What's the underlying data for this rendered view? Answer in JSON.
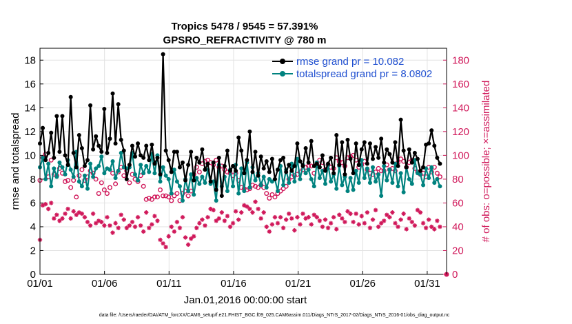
{
  "chart_data": {
    "type": "line",
    "title": "Tropics 5478 / 9545 = 57.391%",
    "subtitle": "GPSRO_REFRACTIVITY @ 780 m",
    "xlabel": "Jan.01,2016 00:00:00 start",
    "ylabel": "rmse and totalspread",
    "ylabel_right": "# of obs: o=possible; ×=assimilated",
    "xlim": [
      0,
      31.5
    ],
    "ylim": [
      0,
      19
    ],
    "ylim_right": [
      0,
      190
    ],
    "x_ticks": [
      0,
      5,
      10,
      15,
      20,
      25,
      30
    ],
    "x_tick_labels": [
      "01/01",
      "01/06",
      "01/11",
      "01/16",
      "01/21",
      "01/26",
      "01/31"
    ],
    "y_ticks": [
      0,
      2,
      4,
      6,
      8,
      10,
      12,
      14,
      16,
      18
    ],
    "y_ticks_right": [
      0,
      20,
      40,
      60,
      80,
      100,
      120,
      140,
      160,
      180
    ],
    "grid": true,
    "legend_position": "top-right",
    "footnote": "data file: /Users/raeder/DAI/ATM_forcXX/CAM6_setup/f.e21.FHIST_BGC.f09_025.CAM6assim.011/Diags_NTrS_2017-02/Diags_NTrS_2016-01/obs_diag_output.nc",
    "series": [
      {
        "name": "rmse grand pr = 10.082",
        "color": "#000000",
        "values": [
          11.0,
          12.3,
          9.6,
          10.2,
          11.9,
          9.8,
          13.3,
          10.3,
          13.3,
          10.0,
          9.2,
          14.9,
          10.2,
          9.0,
          11.7,
          10.6,
          9.1,
          9.6,
          14.2,
          10.5,
          11.6,
          10.8,
          10.3,
          13.9,
          10.2,
          11.4,
          15.2,
          11.0,
          14.3,
          11.3,
          10.4,
          8.0,
          9.2,
          10.8,
          9.9,
          11.0,
          10.0,
          9.8,
          10.8,
          9.6,
          10.9,
          9.3,
          9.8,
          8.4,
          18.5,
          10.4,
          9.6,
          8.6,
          10.3,
          10.3,
          9.0,
          9.4,
          7.9,
          9.2,
          10.3,
          7.9,
          9.8,
          9.4,
          10.5,
          8.8,
          9.3,
          7.8,
          9.4,
          7.1,
          9.8,
          6.6,
          9.1,
          10.4,
          8.7,
          9.1,
          8.7,
          11.5,
          10.4,
          8.5,
          9.6,
          12.0,
          8.6,
          10.3,
          8.3,
          9.9,
          8.9,
          9.5,
          8.6,
          9.7,
          8.0,
          8.8,
          9.6,
          9.8,
          8.6,
          9.2,
          8.7,
          9.1,
          11.0,
          9.5,
          9.1,
          10.6,
          9.4,
          11.2,
          9.1,
          9.3,
          9.0,
          10.0,
          8.7,
          9.3,
          9.8,
          8.5,
          11.7,
          9.2,
          11.1,
          8.4,
          11.3,
          9.7,
          8.5,
          11.0,
          9.2,
          10.5,
          11.1,
          9.3,
          11.0,
          9.7,
          10.7,
          9.8,
          11.4,
          9.4,
          10.5,
          10.1,
          9.4,
          11.1,
          9.1,
          13.0,
          10.4,
          9.0,
          10.5,
          9.4,
          10.2,
          9.7,
          8.7,
          9.0,
          10.9,
          11.0,
          12.1,
          10.8,
          9.8,
          9.3
        ],
        "x_start": 0.0,
        "x_step": 0.2167
      },
      {
        "name": "totalspread grand pr = 8.0802",
        "color": "#00827f",
        "values": [
          9.0,
          9.8,
          8.0,
          9.3,
          7.4,
          8.9,
          8.2,
          9.4,
          9.0,
          8.4,
          9.6,
          8.8,
          8.2,
          10.3,
          7.8,
          7.4,
          8.3,
          7.2,
          9.3,
          8.2,
          8.9,
          9.1,
          9.9,
          8.5,
          8.9,
          8.8,
          9.5,
          8.1,
          8.7,
          10.2,
          9.0,
          8.9,
          9.0,
          10.2,
          8.4,
          7.9,
          9.2,
          8.5,
          9.1,
          8.6,
          10.1,
          8.5,
          10.0,
          7.8,
          9.0,
          8.3,
          8.0,
          6.8,
          8.8,
          7.8,
          7.4,
          6.2,
          8.0,
          7.0,
          8.4,
          6.7,
          8.1,
          7.6,
          8.2,
          7.7,
          8.8,
          7.6,
          7.8,
          6.2,
          9.2,
          7.4,
          8.2,
          7.0,
          8.8,
          7.4,
          9.2,
          6.8,
          8.9,
          7.0,
          9.4,
          7.3,
          9.0,
          7.9,
          8.5,
          7.5,
          8.2,
          7.3,
          8.0,
          7.8,
          8.0,
          7.0,
          9.1,
          7.5,
          8.8,
          7.7,
          9.3,
          7.8,
          9.7,
          8.0,
          9.2,
          8.5,
          8.8,
          8.0,
          7.4,
          9.4,
          8.1,
          8.7,
          7.6,
          9.2,
          7.8,
          8.4,
          7.2,
          9.1,
          7.5,
          8.2,
          7.0,
          8.1,
          7.1,
          8.7,
          7.7,
          9.6,
          8.1,
          8.9,
          7.7,
          9.0,
          7.8,
          8.4,
          6.6,
          9.1,
          7.9,
          8.8,
          7.7,
          9.3,
          7.4,
          8.5,
          6.9,
          9.0,
          8.0,
          7.6,
          9.6,
          8.5,
          8.4,
          7.5,
          8.9,
          8.1,
          9.0,
          7.7,
          8.0,
          7.4
        ],
        "x_start": 0.0,
        "x_step": 0.2167
      },
      {
        "name": "possible obs",
        "axis": "right",
        "marker": "o",
        "color": "#d0185a",
        "values": [
          79,
          98,
          101,
          82,
          96,
          84,
          83,
          89,
          85,
          78,
          79,
          73,
          79,
          65,
          83,
          88,
          79,
          82,
          87,
          85,
          80,
          68,
          77,
          71,
          68,
          73,
          85,
          76,
          86,
          90,
          83,
          87,
          77,
          84,
          80,
          78,
          83,
          74,
          63,
          64,
          63,
          65,
          65,
          71,
          66,
          66,
          65,
          62,
          66,
          68,
          62,
          68,
          70,
          66,
          70,
          84,
          90,
          86,
          93,
          95,
          96,
          94,
          92,
          96,
          90,
          91,
          88,
          86,
          85,
          83,
          85,
          79,
          73,
          72,
          71,
          72,
          75,
          74,
          73,
          75,
          73,
          68,
          64,
          67,
          65,
          68,
          70,
          72,
          74,
          80,
          82,
          83,
          84,
          86,
          88,
          90,
          91,
          91,
          85,
          92,
          96,
          94,
          88,
          92,
          90,
          89,
          98,
          95,
          94,
          91,
          98,
          99,
          100,
          96,
          90,
          92,
          95,
          88,
          85,
          84,
          86,
          89,
          87,
          87,
          92,
          88,
          89,
          87,
          94,
          97,
          95,
          90,
          94,
          96,
          89,
          86,
          84,
          85,
          82,
          90,
          86,
          90,
          85,
          82
        ],
        "x_start": 0.0,
        "x_step": 0.2167
      },
      {
        "name": "assimilated obs",
        "axis": "right",
        "marker": "*",
        "color": "#d0185a",
        "values": [
          29,
          58,
          59,
          55,
          60,
          47,
          50,
          45,
          47,
          51,
          55,
          47,
          53,
          50,
          52,
          51,
          48,
          44,
          41,
          51,
          43,
          45,
          44,
          41,
          48,
          41,
          35,
          43,
          39,
          50,
          46,
          39,
          41,
          44,
          40,
          48,
          41,
          36,
          52,
          39,
          42,
          49,
          45,
          29,
          26,
          23,
          32,
          40,
          36,
          44,
          39,
          48,
          31,
          25,
          30,
          32,
          39,
          43,
          46,
          41,
          48,
          55,
          54,
          45,
          47,
          52,
          45,
          49,
          40,
          43,
          53,
          46,
          52,
          58,
          57,
          55,
          52,
          61,
          55,
          47,
          52,
          40,
          36,
          42,
          48,
          43,
          48,
          39,
          46,
          51,
          47,
          37,
          48,
          42,
          51,
          47,
          48,
          42,
          50,
          48,
          45,
          40,
          46,
          39,
          43,
          48,
          38,
          50,
          47,
          44,
          53,
          51,
          44,
          51,
          42,
          49,
          43,
          52,
          39,
          46,
          54,
          40,
          43,
          45,
          50,
          48,
          52,
          43,
          40,
          46,
          51,
          38,
          47,
          44,
          41,
          54,
          52,
          43,
          39,
          46,
          40,
          38,
          45,
          40
        ],
        "x_start": 0.0,
        "x_step": 0.2167
      }
    ]
  }
}
